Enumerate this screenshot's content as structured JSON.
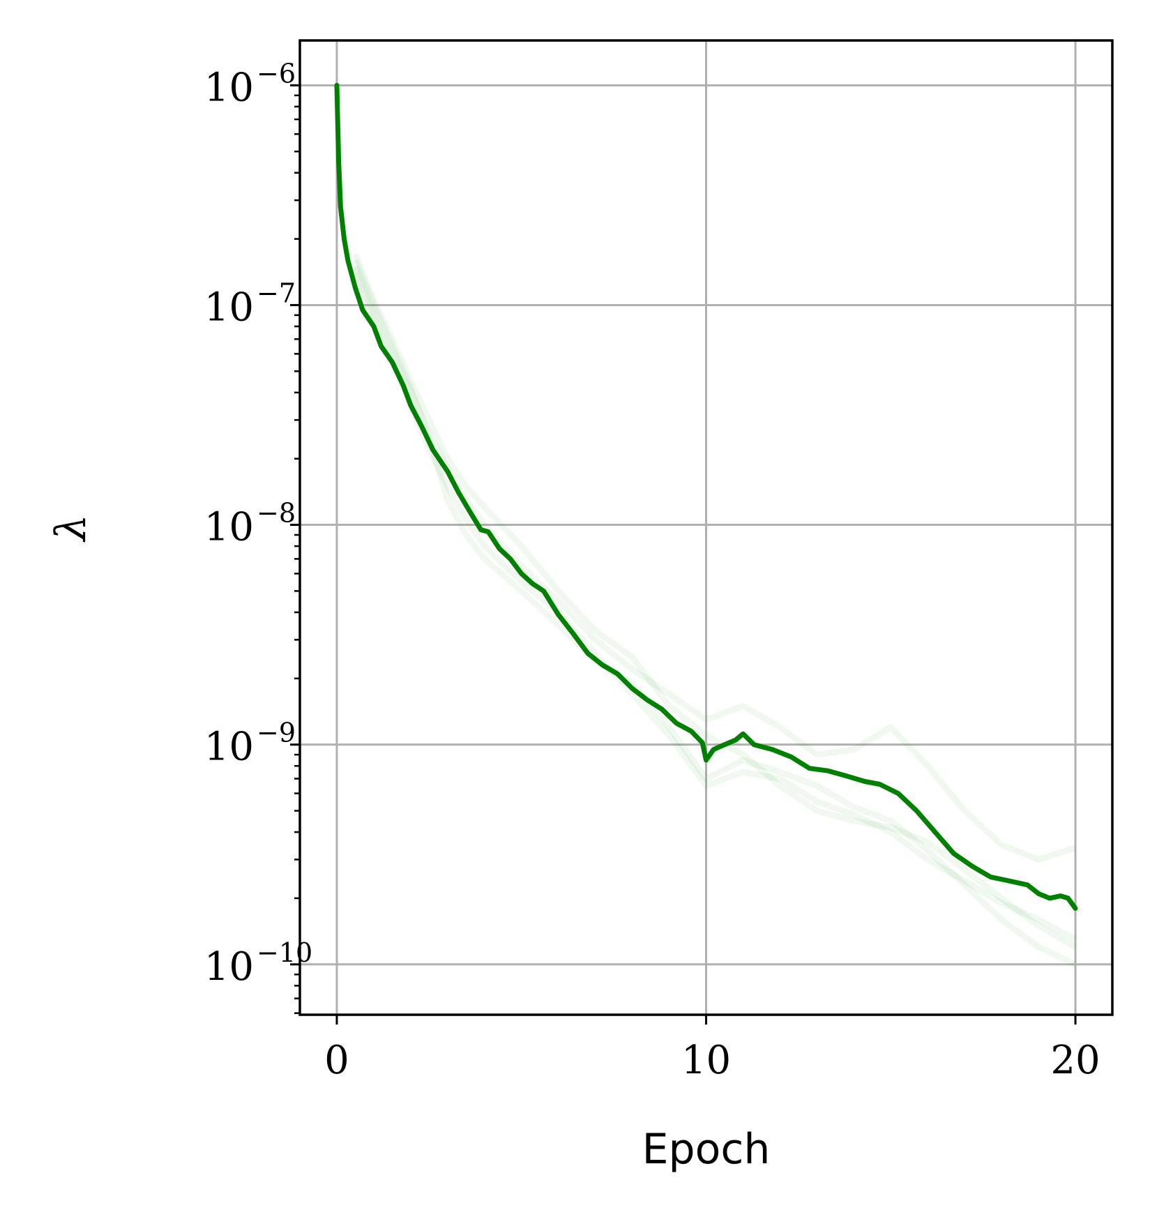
{
  "chart_data": {
    "type": "line",
    "title": "",
    "xlabel": "Epoch",
    "ylabel": "λ",
    "xlim": [
      -1,
      21
    ],
    "ylim": [
      5.9e-11,
      1.6e-06
    ],
    "yscale": "log",
    "grid": true,
    "x_ticks": [
      {
        "value": 0,
        "label": "0"
      },
      {
        "value": 10,
        "label": "10"
      },
      {
        "value": 20,
        "label": "20"
      }
    ],
    "y_ticks": [
      {
        "value": 1e-06,
        "label": "10",
        "exp": "−6"
      },
      {
        "value": 1e-07,
        "label": "10",
        "exp": "−7"
      },
      {
        "value": 1e-08,
        "label": "10",
        "exp": "−8"
      },
      {
        "value": 1e-09,
        "label": "10",
        "exp": "−9"
      },
      {
        "value": 1e-10,
        "label": "10",
        "exp": "−10"
      }
    ],
    "colors": {
      "main": "#008000",
      "faint": "#008000",
      "grid": "#b0b0b0",
      "axes": "#000000"
    },
    "series": [
      {
        "role": "main",
        "x": [
          0,
          0.05,
          0.1,
          0.2,
          0.3,
          0.5,
          0.7,
          1.0,
          1.2,
          1.5,
          1.8,
          2.0,
          2.3,
          2.6,
          3.0,
          3.3,
          3.6,
          3.9,
          4.1,
          4.4,
          4.7,
          5.0,
          5.3,
          5.6,
          6.0,
          6.4,
          6.8,
          7.2,
          7.6,
          8.0,
          8.4,
          8.8,
          9.2,
          9.6,
          9.9,
          10.0,
          10.2,
          10.5,
          10.8,
          11.0,
          11.3,
          11.8,
          12.3,
          12.8,
          13.3,
          13.8,
          14.3,
          14.7,
          15.2,
          15.7,
          16.2,
          16.7,
          17.2,
          17.7,
          18.2,
          18.7,
          19.0,
          19.3,
          19.6,
          19.8,
          20.0
        ],
        "y": [
          1e-06,
          4.5e-07,
          2.8e-07,
          2e-07,
          1.6e-07,
          1.2e-07,
          9.5e-08,
          8e-08,
          6.5e-08,
          5.5e-08,
          4.3e-08,
          3.5e-08,
          2.8e-08,
          2.2e-08,
          1.75e-08,
          1.4e-08,
          1.15e-08,
          9.5e-09,
          9.3e-09,
          7.8e-09,
          7e-09,
          6e-09,
          5.4e-09,
          5e-09,
          3.9e-09,
          3.2e-09,
          2.6e-09,
          2.3e-09,
          2.1e-09,
          1.8e-09,
          1.6e-09,
          1.45e-09,
          1.25e-09,
          1.15e-09,
          1.02e-09,
          8.5e-10,
          9.5e-10,
          1e-09,
          1.05e-09,
          1.12e-09,
          1e-09,
          9.5e-10,
          8.8e-10,
          7.8e-10,
          7.6e-10,
          7.2e-10,
          6.8e-10,
          6.6e-10,
          6e-10,
          5e-10,
          4e-10,
          3.2e-10,
          2.8e-10,
          2.5e-10,
          2.4e-10,
          2.3e-10,
          2.1e-10,
          2e-10,
          2.05e-10,
          2e-10,
          1.8e-10
        ]
      },
      {
        "role": "faint",
        "x": [
          0.5,
          1.0,
          1.5,
          2.0,
          2.5,
          3.0,
          3.5,
          4.0,
          5.0,
          6.0,
          7.0,
          8.0,
          9.0,
          10.0,
          11.0,
          12.0,
          13.0,
          14.0,
          15.0,
          16.0,
          17.0,
          18.0,
          19.0,
          20.0
        ],
        "y": [
          1.5e-07,
          9e-08,
          6e-08,
          4e-08,
          2.6e-08,
          1.8e-08,
          1.3e-08,
          1e-08,
          6.5e-09,
          4.5e-09,
          3e-09,
          2.2e-09,
          1.7e-09,
          1.3e-09,
          1.5e-09,
          1.2e-09,
          9e-10,
          9.5e-10,
          1.2e-09,
          8e-10,
          5e-10,
          3.5e-10,
          3e-10,
          3.4e-10
        ]
      },
      {
        "role": "faint",
        "x": [
          0.5,
          1.0,
          1.5,
          2.0,
          2.5,
          3.0,
          3.5,
          4.0,
          5.0,
          6.0,
          7.0,
          8.0,
          9.0,
          10.0,
          11.0,
          12.0,
          13.0,
          14.0,
          15.0,
          16.0,
          17.0,
          18.0,
          19.0,
          20.0
        ],
        "y": [
          1.4e-07,
          8.5e-08,
          5.5e-08,
          3.5e-08,
          2.2e-08,
          1.5e-08,
          1.05e-08,
          8e-09,
          5.5e-09,
          4e-09,
          2.6e-09,
          1.7e-09,
          1.1e-09,
          6.5e-10,
          7.5e-10,
          7e-10,
          5.5e-10,
          4.8e-10,
          4e-10,
          3e-10,
          2.4e-10,
          1.9e-10,
          1.6e-10,
          1.3e-10
        ]
      },
      {
        "role": "faint",
        "x": [
          0.5,
          1.0,
          1.5,
          2.0,
          2.5,
          3.0,
          3.5,
          4.0,
          5.0,
          6.0,
          7.0,
          8.0,
          9.0,
          10.0,
          11.0,
          12.0,
          13.0,
          14.0,
          15.0,
          16.0,
          17.0,
          18.0,
          19.0,
          20.0
        ],
        "y": [
          1.6e-07,
          1e-07,
          6.5e-08,
          4.2e-08,
          2.5e-08,
          1.3e-08,
          9e-09,
          7e-09,
          5e-09,
          3.5e-09,
          2.4e-09,
          1.9e-09,
          1.2e-09,
          7e-10,
          8.5e-10,
          7.5e-10,
          6.5e-10,
          5.2e-10,
          4.5e-10,
          3.3e-10,
          2.3e-10,
          1.6e-10,
          1.2e-10,
          1e-10
        ]
      },
      {
        "role": "faint",
        "x": [
          0.5,
          1.0,
          1.5,
          2.0,
          2.5,
          3.0,
          3.5,
          4.0,
          5.0,
          6.0,
          7.0,
          8.0,
          9.0,
          10.0,
          11.0,
          12.0,
          13.0,
          14.0,
          15.0,
          16.0,
          17.0,
          18.0,
          19.0,
          20.0
        ],
        "y": [
          1.7e-07,
          1.05e-07,
          7e-08,
          4.5e-08,
          3e-08,
          2e-08,
          1.5e-08,
          1.2e-08,
          8e-09,
          5e-09,
          3.3e-09,
          2.5e-09,
          1.5e-09,
          1.1e-09,
          9e-10,
          6.5e-10,
          5e-10,
          4.5e-10,
          4.2e-10,
          3.6e-10,
          2.7e-10,
          2e-10,
          1.5e-10,
          1.2e-10
        ]
      }
    ]
  }
}
